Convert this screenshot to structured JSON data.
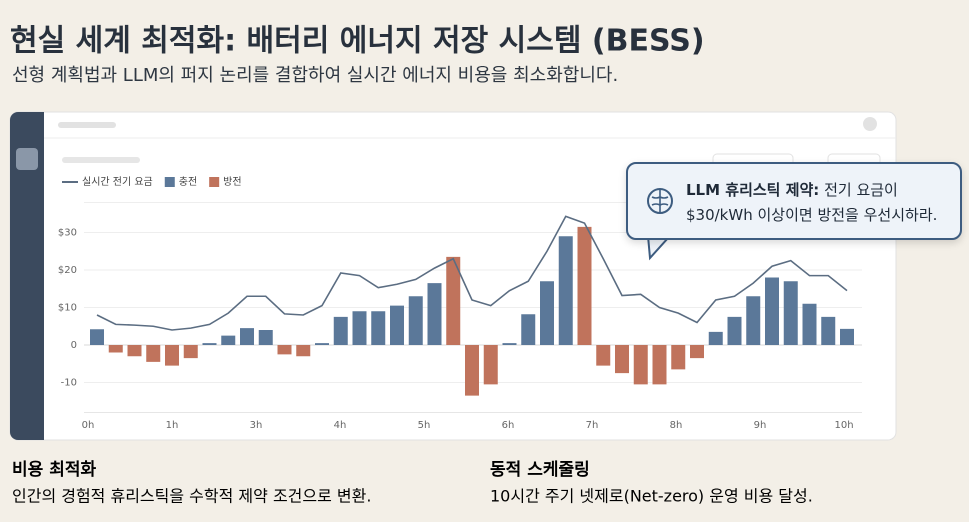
{
  "header": {
    "title": "현실 세계 최적화: 배터리 에너지 저장 시스템 (BESS)",
    "subtitle": "선형 계획법과 LLM의 퍼지 논리를 결합하여 실시간 에너지 비용을 최소화합니다."
  },
  "chart_data": {
    "type": "combo",
    "series": [
      {
        "name": "실시간 전기 요금",
        "kind": "line",
        "color": "#5b6d82",
        "values": [
          8,
          5.5,
          5.3,
          5,
          4,
          4.5,
          5.5,
          8.5,
          13,
          13,
          8.3,
          8,
          10.5,
          19.2,
          18.5,
          15.3,
          16.2,
          17.5,
          20.5,
          23,
          12,
          10.5,
          14.5,
          17,
          25,
          34.3,
          32.5,
          23,
          13.2,
          13.5,
          10,
          8.5,
          6,
          12,
          13,
          16.5,
          21,
          22.5,
          18.5,
          18.5,
          14.5
        ]
      },
      {
        "name": "충전",
        "kind": "bar",
        "color": "#5b7899",
        "values": [
          4.2,
          null,
          null,
          null,
          null,
          null,
          0.5,
          2.5,
          4.5,
          4,
          null,
          null,
          0.5,
          7.5,
          9,
          9,
          10.5,
          13,
          16.5,
          null,
          null,
          null,
          0.5,
          8.2,
          17,
          29,
          null,
          null,
          null,
          null,
          null,
          null,
          null,
          3.5,
          7.5,
          13,
          18,
          17,
          11,
          7.5,
          4.3
        ]
      },
      {
        "name": "방전",
        "kind": "bar",
        "color": "#c0735c",
        "values": [
          null,
          -2,
          -3,
          -4.5,
          -5.5,
          -3.5,
          null,
          null,
          null,
          null,
          -2.5,
          -3,
          null,
          null,
          null,
          null,
          null,
          null,
          null,
          23.5,
          -13.5,
          -10.5,
          null,
          null,
          null,
          null,
          31.5,
          -5.5,
          -7.5,
          -10.5,
          -10.5,
          -6.5,
          -3.5,
          null,
          null,
          null,
          null,
          null,
          null,
          null,
          null
        ]
      }
    ],
    "x_labels": [
      "0h",
      "1h",
      "3h",
      "4h",
      "5h",
      "6h",
      "7h",
      "8h",
      "9h",
      "10h"
    ],
    "ylim": [
      -18,
      38
    ],
    "yticks": [
      -10,
      0,
      {
        "value": 10,
        "label": "$10"
      },
      {
        "value": 20,
        "label": "$20"
      },
      {
        "value": 30,
        "label": "$30"
      }
    ],
    "grid": true,
    "callout": {
      "label": "LLM 휴리스틱 제약:",
      "line1": "전기 요금이",
      "line2": "$30/kWh 이상이면 방전을 우선시하라."
    }
  },
  "footer": [
    {
      "title": "비용 최적화",
      "text": "인간의 경험적 휴리스틱을 수학적 제약 조건으로 변환."
    },
    {
      "title": "동적 스케줄링",
      "text": "10시간 주기 넷제로(Net-zero) 운영 비용 달성."
    }
  ]
}
